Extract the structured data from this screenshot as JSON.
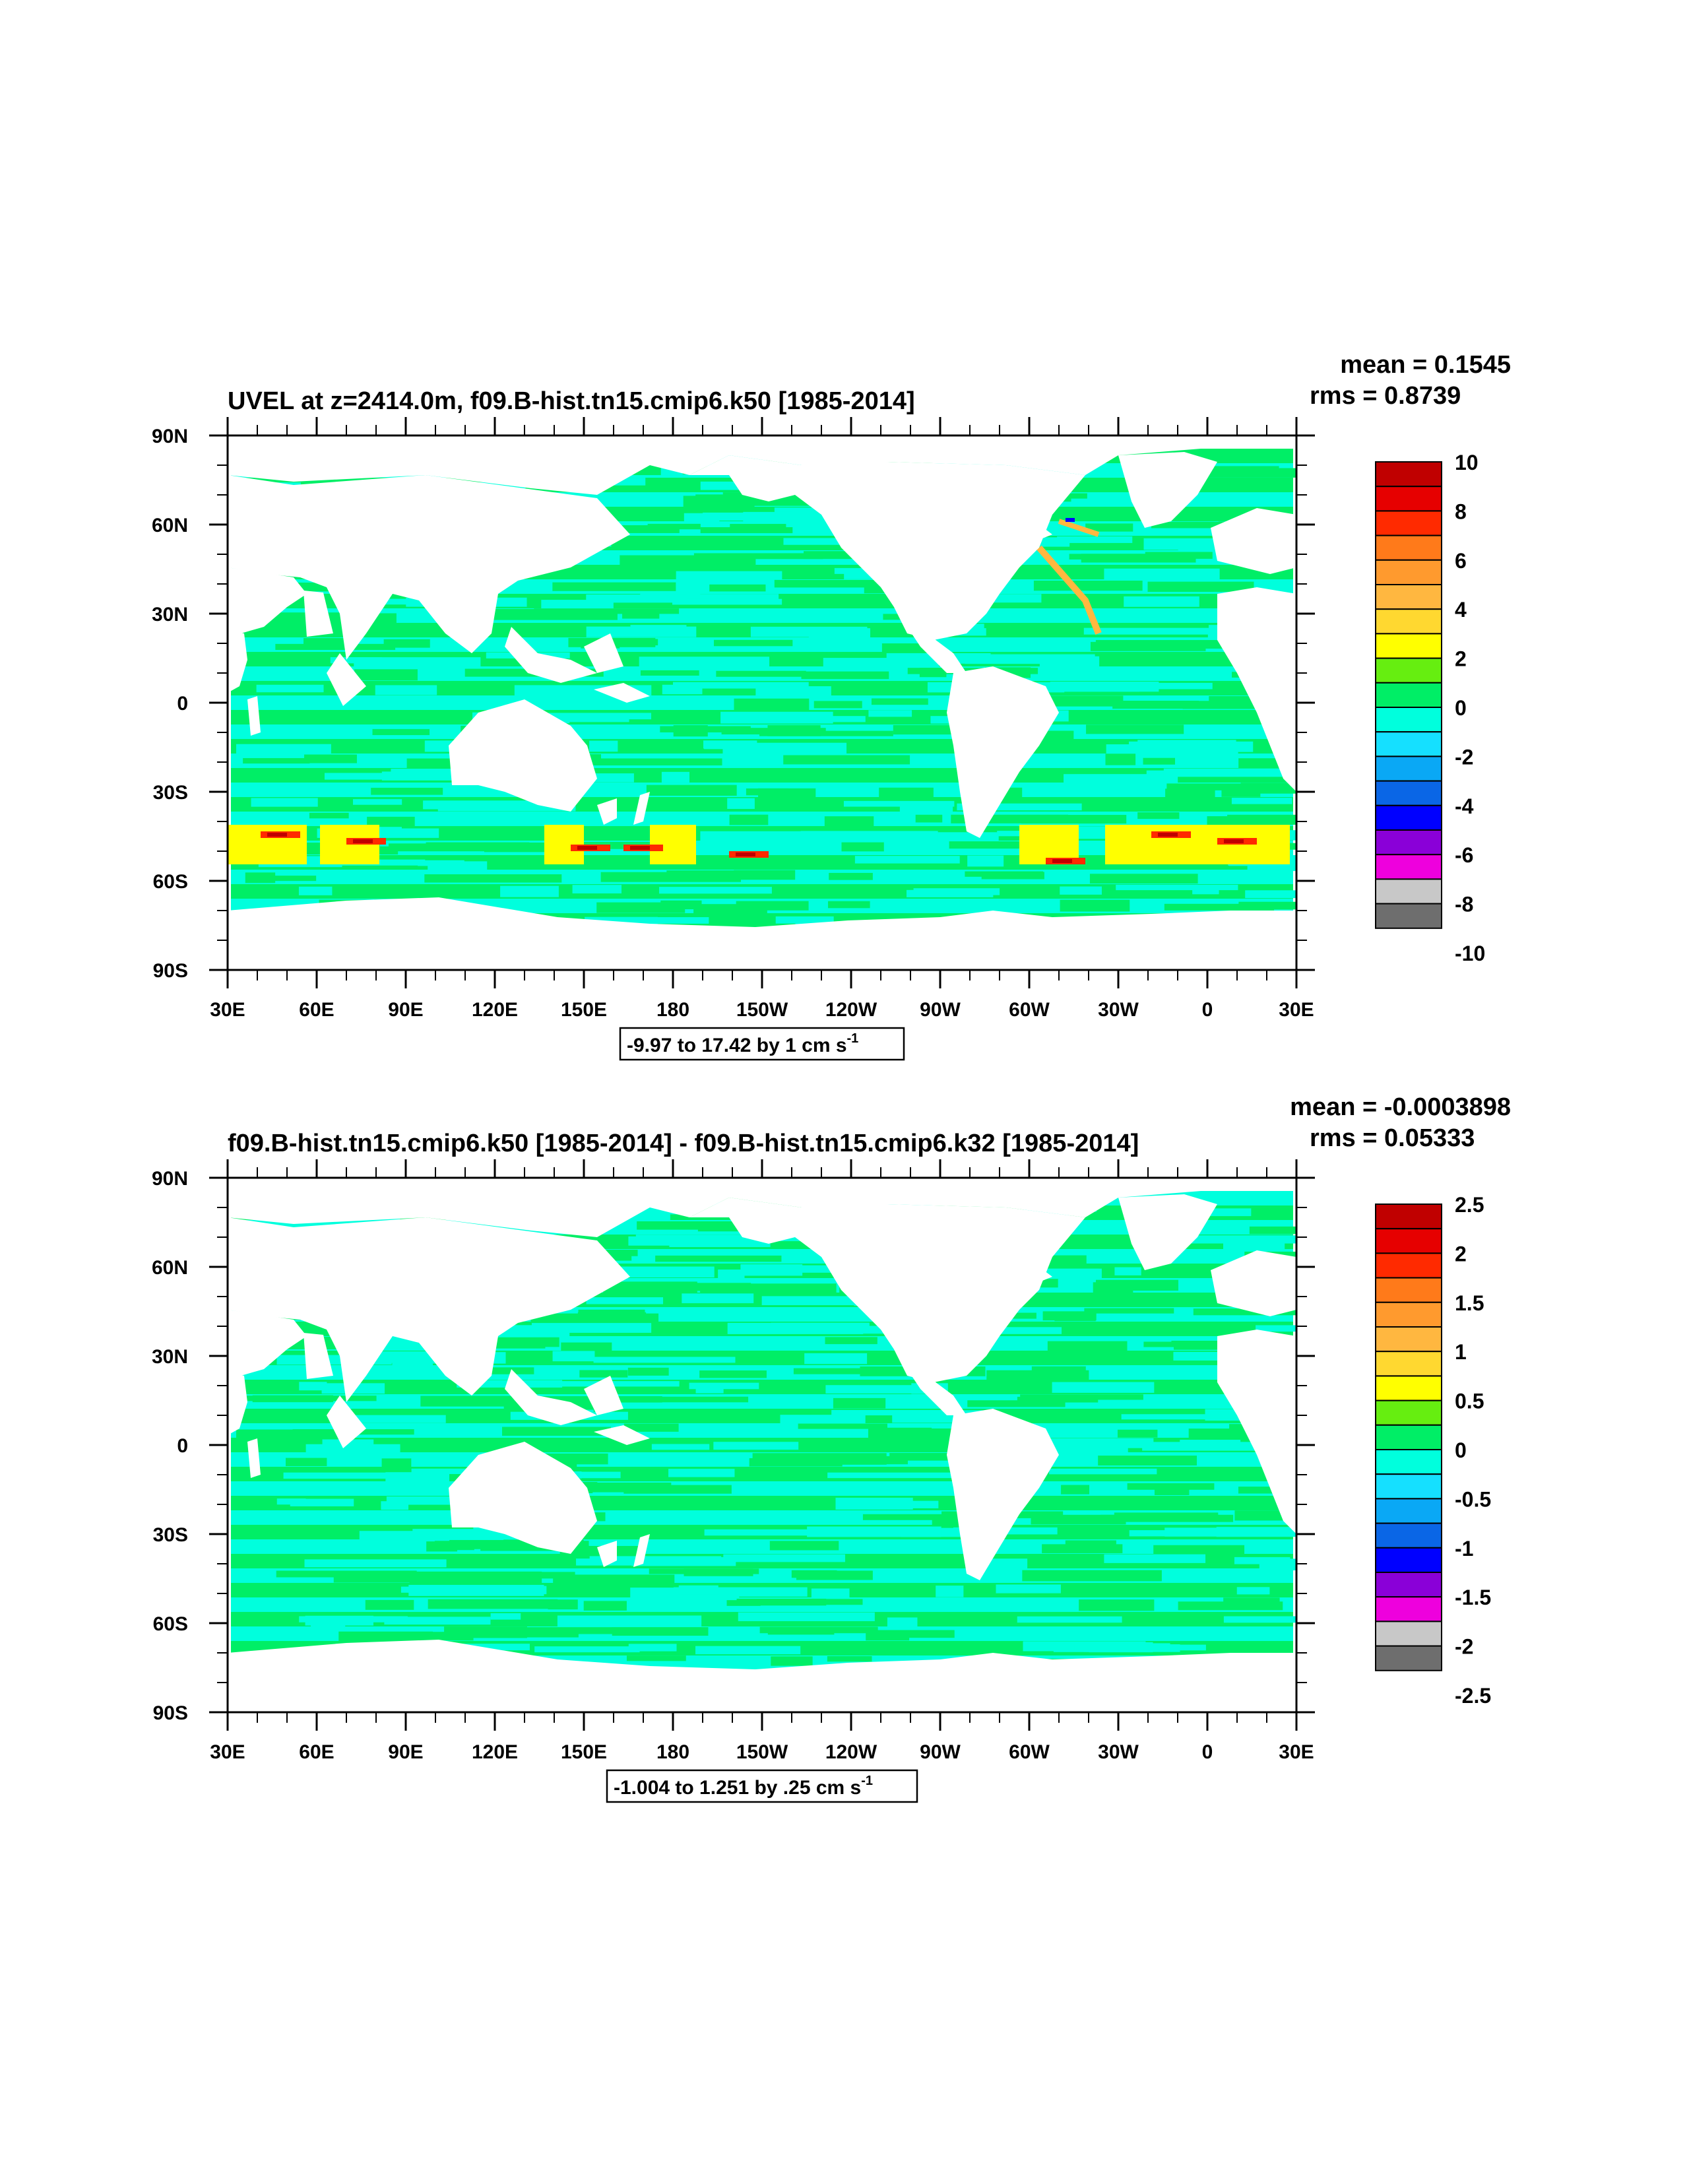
{
  "panels": [
    {
      "id": "top",
      "title": "UVEL at z=2414.0m, f09.B-hist.tn15.cmip6.k50 [1985-2014]",
      "mean_text": "mean = 0.1545",
      "rms_text": "rms = 0.8739",
      "range_text": "-9.97 to 17.42 by 1 cm s",
      "range_sup": "-1",
      "lon_labels": [
        "30E",
        "60E",
        "90E",
        "120E",
        "150E",
        "180",
        "150W",
        "120W",
        "90W",
        "60W",
        "30W",
        "0",
        "30E"
      ],
      "lat_labels": [
        "90N",
        "60N",
        "30N",
        "0",
        "30S",
        "60S",
        "90S"
      ],
      "colorbar_labels": [
        "10",
        "8",
        "6",
        "4",
        "2",
        "0",
        "-2",
        "-4",
        "-6",
        "-8",
        "-10"
      ]
    },
    {
      "id": "bottom",
      "title": "f09.B-hist.tn15.cmip6.k50 [1985-2014] - f09.B-hist.tn15.cmip6.k32 [1985-2014]",
      "mean_text": "mean = -0.0003898",
      "rms_text": "rms = 0.05333",
      "range_text": "-1.004 to 1.251 by .25 cm s",
      "range_sup": "-1",
      "lon_labels": [
        "30E",
        "60E",
        "90E",
        "120E",
        "150E",
        "180",
        "150W",
        "120W",
        "90W",
        "60W",
        "30W",
        "0",
        "30E"
      ],
      "lat_labels": [
        "90N",
        "60N",
        "30N",
        "0",
        "30S",
        "60S",
        "90S"
      ],
      "colorbar_labels": [
        "2.5",
        "2",
        "1.5",
        "1",
        "0.5",
        "0",
        "-0.5",
        "-1",
        "-1.5",
        "-2",
        "-2.5"
      ]
    }
  ],
  "colorbar_colors": [
    "#c00000",
    "#e60000",
    "#ff2a00",
    "#ff7a1a",
    "#ff9a2e",
    "#ffb740",
    "#ffd830",
    "#ffff00",
    "#66ee10",
    "#00ee66",
    "#00ffdd",
    "#15e0ff",
    "#0aa8f5",
    "#0a66e6",
    "#0000ff",
    "#8a00d8",
    "#ee00dd",
    "#c8c8c8",
    "#6e6e6e"
  ],
  "map_colors": {
    "ocean_zero_pos": "#00ee66",
    "ocean_zero_neg": "#00ffdd",
    "pos_high": "#ffff00",
    "pos_mid": "#ffb740",
    "pos_strong": "#ff2a00",
    "pos_max": "#c00000",
    "neg_strong": "#0000ff"
  }
}
